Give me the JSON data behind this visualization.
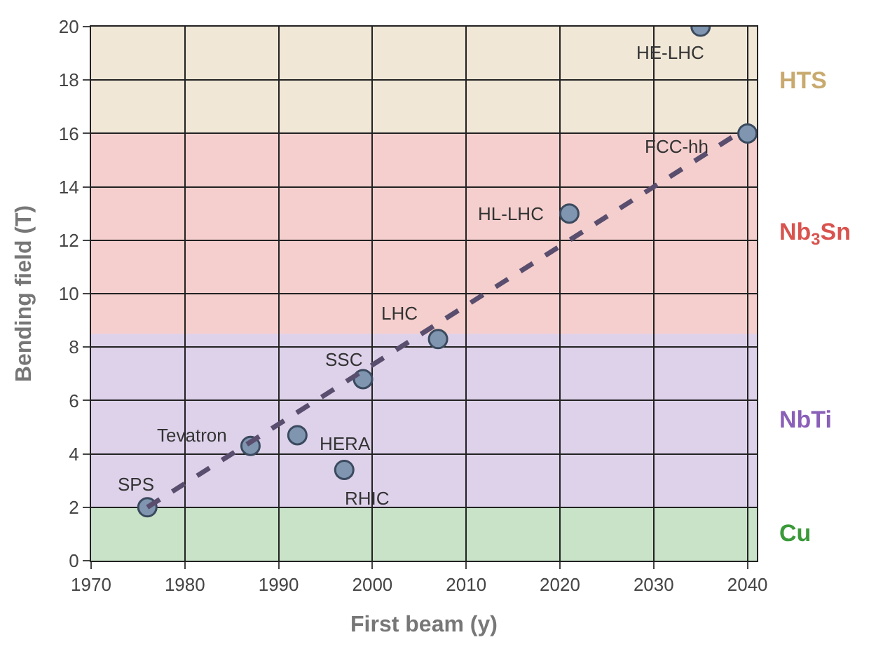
{
  "chart_data": {
    "type": "scatter",
    "xlabel": "First beam (y)",
    "ylabel": "Bending field (T)",
    "xlim": [
      1970,
      2041
    ],
    "xticks": [
      1970,
      1980,
      1990,
      2000,
      2010,
      2020,
      2030,
      2040
    ],
    "ylim": [
      0,
      20
    ],
    "yticks": [
      0,
      2,
      4,
      6,
      8,
      10,
      12,
      14,
      16,
      18,
      20
    ],
    "grid": true,
    "marker": "circle",
    "series": [
      {
        "color": "#7f95b0",
        "x": [
          1976,
          1987,
          1992,
          1997,
          1999,
          2007,
          2021,
          2035,
          2040
        ],
        "values": [
          2,
          4.3,
          4.7,
          3.4,
          6.8,
          8.3,
          13,
          20,
          16
        ]
      },
      {
        "type": "line",
        "marker": "none",
        "color": "#5a4e6e",
        "line_style": "dashed",
        "x": [
          1976,
          2039
        ],
        "values": [
          2,
          16
        ]
      }
    ],
    "bands": [
      {
        "axis": "y",
        "from": 0,
        "to": 2,
        "label": "Cu",
        "color": "#3a9a3a"
      },
      {
        "axis": "y",
        "from": 2,
        "to": 8.5,
        "label": "NbTi",
        "color": "#8a5fb8"
      },
      {
        "axis": "y",
        "from": 8.5,
        "to": 16,
        "label": "Nb$_{3}$Sn",
        "color": "#d9534f"
      },
      {
        "axis": "y",
        "from": 16,
        "to": 20,
        "label": "HTS",
        "color": "#c8aa6e"
      }
    ],
    "annotations": [
      {
        "text": "SPS",
        "x": 1976,
        "y": 2
      },
      {
        "text": "Tevatron",
        "x": 1987,
        "y": 4.3
      },
      {
        "text": "HERA",
        "x": 1992,
        "y": 4.7
      },
      {
        "text": "RHIC",
        "x": 1997,
        "y": 3.4
      },
      {
        "text": "SSC",
        "x": 1999,
        "y": 6.8
      },
      {
        "text": "LHC",
        "x": 2007,
        "y": 8.3
      },
      {
        "text": "HL-LHC",
        "x": 2021,
        "y": 13
      },
      {
        "text": "HE-LHC",
        "x": 2035,
        "y": 20
      },
      {
        "text": "FCC-hh",
        "x": 2040,
        "y": 16
      }
    ]
  }
}
